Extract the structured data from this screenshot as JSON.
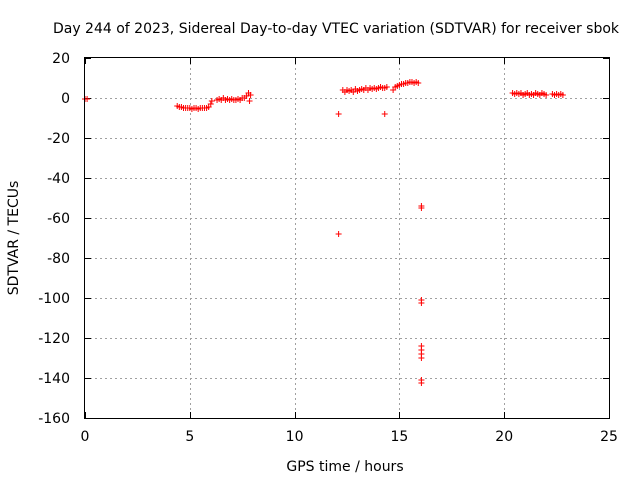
{
  "chart_data": {
    "type": "scatter",
    "title": "Day 244 of 2023, Sidereal Day-to-day VTEC variation (SDTVAR) for receiver sbok",
    "xlabel": "GPS time / hours",
    "ylabel": "SDTVAR / TECUs",
    "xlim": [
      0,
      25
    ],
    "ylim": [
      -160,
      20
    ],
    "xticks": [
      "0",
      "5",
      "10",
      "15",
      "20",
      "25"
    ],
    "yticks": [
      "20",
      "0",
      "-20",
      "-40",
      "-60",
      "-80",
      "-100",
      "-120",
      "-140",
      "-160"
    ],
    "grid": true,
    "marker": "+",
    "color": "#ff0000",
    "series": [
      {
        "points": [
          [
            0.0,
            -0.5
          ],
          [
            0.1,
            -0.5
          ],
          [
            4.4,
            -4.0
          ],
          [
            4.5,
            -4.5
          ],
          [
            4.6,
            -4.5
          ],
          [
            4.7,
            -5.0
          ],
          [
            4.8,
            -5.0
          ],
          [
            4.9,
            -5.0
          ],
          [
            5.0,
            -5.0
          ],
          [
            5.1,
            -5.5
          ],
          [
            5.2,
            -5.0
          ],
          [
            5.3,
            -5.0
          ],
          [
            5.4,
            -5.5
          ],
          [
            5.5,
            -5.0
          ],
          [
            5.6,
            -5.0
          ],
          [
            5.7,
            -5.0
          ],
          [
            5.8,
            -5.0
          ],
          [
            5.9,
            -4.5
          ],
          [
            6.0,
            -3.0
          ],
          [
            6.05,
            -1.5
          ],
          [
            6.3,
            -1.0
          ],
          [
            6.4,
            -0.5
          ],
          [
            6.5,
            -1.0
          ],
          [
            6.6,
            0.0
          ],
          [
            6.7,
            -1.0
          ],
          [
            6.8,
            -0.5
          ],
          [
            6.9,
            -1.0
          ],
          [
            7.0,
            -0.5
          ],
          [
            7.1,
            -1.0
          ],
          [
            7.2,
            -1.0
          ],
          [
            7.3,
            -0.5
          ],
          [
            7.4,
            -1.0
          ],
          [
            7.5,
            0.0
          ],
          [
            7.6,
            0.0
          ],
          [
            7.7,
            1.0
          ],
          [
            7.8,
            2.5
          ],
          [
            7.85,
            -1.5
          ],
          [
            7.9,
            1.5
          ],
          [
            12.1,
            -8.0
          ],
          [
            12.1,
            -68.0
          ],
          [
            12.3,
            4.0
          ],
          [
            12.4,
            3.0
          ],
          [
            12.5,
            4.0
          ],
          [
            12.6,
            3.5
          ],
          [
            12.7,
            4.0
          ],
          [
            12.8,
            3.0
          ],
          [
            12.9,
            4.5
          ],
          [
            13.0,
            3.5
          ],
          [
            13.1,
            4.0
          ],
          [
            13.2,
            4.5
          ],
          [
            13.3,
            4.0
          ],
          [
            13.4,
            5.0
          ],
          [
            13.5,
            4.0
          ],
          [
            13.6,
            5.0
          ],
          [
            13.7,
            4.5
          ],
          [
            13.8,
            5.0
          ],
          [
            13.9,
            4.5
          ],
          [
            14.0,
            5.0
          ],
          [
            14.1,
            5.5
          ],
          [
            14.2,
            5.0
          ],
          [
            14.3,
            5.0
          ],
          [
            14.4,
            5.5
          ],
          [
            14.3,
            -8.0
          ],
          [
            14.7,
            4.0
          ],
          [
            14.8,
            5.5
          ],
          [
            14.9,
            6.0
          ],
          [
            15.0,
            6.5
          ],
          [
            15.1,
            7.0
          ],
          [
            15.2,
            7.0
          ],
          [
            15.3,
            7.5
          ],
          [
            15.4,
            7.5
          ],
          [
            15.5,
            8.0
          ],
          [
            15.6,
            8.0
          ],
          [
            15.7,
            7.5
          ],
          [
            15.8,
            8.0
          ],
          [
            15.9,
            7.5
          ],
          [
            16.05,
            -54.0
          ],
          [
            16.05,
            -55.0
          ],
          [
            16.05,
            -101.0
          ],
          [
            16.05,
            -102.5
          ],
          [
            16.05,
            -124.0
          ],
          [
            16.05,
            -126.0
          ],
          [
            16.05,
            -128.0
          ],
          [
            16.05,
            -130.0
          ],
          [
            16.05,
            -141.0
          ],
          [
            16.05,
            -142.5
          ],
          [
            20.4,
            2.5
          ],
          [
            20.5,
            2.0
          ],
          [
            20.6,
            2.5
          ],
          [
            20.7,
            2.0
          ],
          [
            20.8,
            2.5
          ],
          [
            20.9,
            1.5
          ],
          [
            21.0,
            2.0
          ],
          [
            21.1,
            2.5
          ],
          [
            21.2,
            1.5
          ],
          [
            21.3,
            2.0
          ],
          [
            21.4,
            1.5
          ],
          [
            21.5,
            2.5
          ],
          [
            21.6,
            2.0
          ],
          [
            21.7,
            1.5
          ],
          [
            21.8,
            2.5
          ],
          [
            21.9,
            2.0
          ],
          [
            22.0,
            1.5
          ],
          [
            22.3,
            2.0
          ],
          [
            22.4,
            1.5
          ],
          [
            22.5,
            2.0
          ],
          [
            22.6,
            1.5
          ],
          [
            22.7,
            2.0
          ],
          [
            22.8,
            1.5
          ]
        ]
      }
    ]
  }
}
